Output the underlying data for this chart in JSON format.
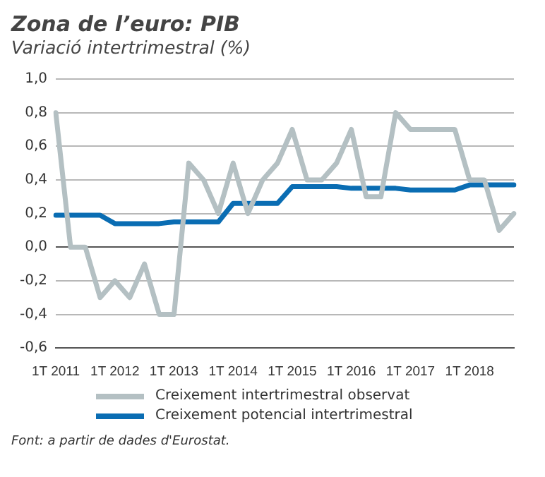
{
  "chart_data": {
    "type": "line",
    "title": "Zona de l’euro: PIB",
    "subtitle": "Variació intertrimestral (%)",
    "categories": [
      "1T 2011",
      null,
      null,
      null,
      "1T 2012",
      null,
      null,
      null,
      "1T 2013",
      null,
      null,
      null,
      "1T 2014",
      null,
      null,
      null,
      "1T 2015",
      null,
      null,
      null,
      "1T 2016",
      null,
      null,
      null,
      "1T 2017",
      null,
      null,
      null,
      "1T 2018",
      null,
      null,
      null
    ],
    "series": [
      {
        "name": "Creixement intertrimestral observat",
        "color": "#b4c0c3",
        "values": [
          0.8,
          0.0,
          0.0,
          -0.3,
          -0.2,
          -0.3,
          -0.1,
          -0.4,
          -0.4,
          0.5,
          0.4,
          0.2,
          0.5,
          0.2,
          0.4,
          0.5,
          0.7,
          0.4,
          0.4,
          0.5,
          0.7,
          0.3,
          0.3,
          0.8,
          0.7,
          0.7,
          0.7,
          0.7,
          0.4,
          0.4,
          0.1,
          0.2
        ]
      },
      {
        "name": "Creixement potencial intertrimestral",
        "color": "#0a6db3",
        "values": [
          0.19,
          0.19,
          0.19,
          0.19,
          0.14,
          0.14,
          0.14,
          0.14,
          0.15,
          0.15,
          0.15,
          0.15,
          0.26,
          0.26,
          0.26,
          0.26,
          0.36,
          0.36,
          0.36,
          0.36,
          0.35,
          0.35,
          0.35,
          0.35,
          0.34,
          0.34,
          0.34,
          0.34,
          0.37,
          0.37,
          0.37,
          0.37
        ]
      }
    ],
    "ylim": [
      -0.6,
      1.0
    ],
    "yticks": [
      {
        "value": -0.6,
        "label": "-0,6"
      },
      {
        "value": -0.4,
        "label": "-0,4"
      },
      {
        "value": -0.2,
        "label": "-0,2"
      },
      {
        "value": 0,
        "label": "0,0"
      },
      {
        "value": 0.2,
        "label": "0,2"
      },
      {
        "value": 0.4,
        "label": "0,4"
      },
      {
        "value": 0.6,
        "label": "0,6"
      },
      {
        "value": 0.8,
        "label": "0,8"
      },
      {
        "value": 1.0,
        "label": "1,0"
      }
    ],
    "grid": "y",
    "legend": "bottom",
    "marker": "none",
    "line_style": "solid",
    "annotations": [
      "Font: a partir de dades d'Eurostat."
    ]
  }
}
